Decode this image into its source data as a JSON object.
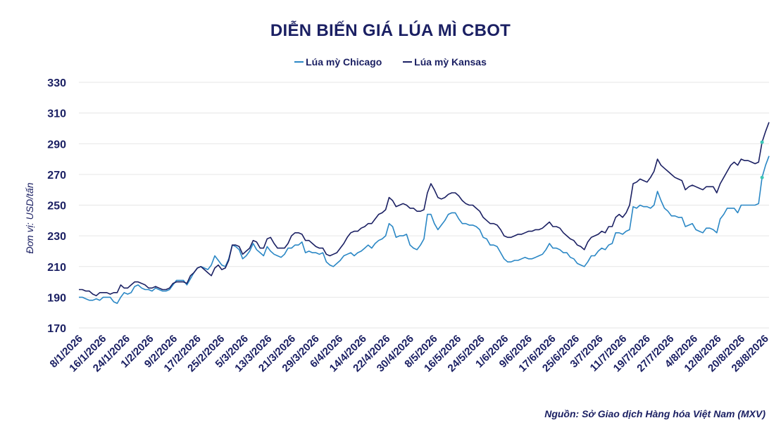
{
  "chart_data": {
    "type": "line",
    "title": "DIỄN BIẾN GIÁ LÚA MÌ CBOT",
    "ylabel": "Đơn vị: USD/tấn",
    "xlabel": "",
    "ylim": [
      170,
      330
    ],
    "yticks": [
      170,
      190,
      210,
      230,
      250,
      270,
      290,
      310,
      330
    ],
    "x_range": [
      "8/1/2026",
      "28/8/2026"
    ],
    "xticks": [
      "8/1/2026",
      "16/1/2026",
      "24/1/2026",
      "1/2/2026",
      "9/2/2026",
      "17/2/2026",
      "25/2/2026",
      "5/3/2026",
      "13/3/2026",
      "21/3/2026",
      "29/3/2026",
      "6/4/2026",
      "14/4/2026",
      "22/4/2026",
      "30/4/2026",
      "8/5/2026",
      "16/5/2026",
      "24/5/2026",
      "1/6/2026",
      "9/6/2026",
      "17/6/2026",
      "25/6/2026",
      "3/7/2026",
      "11/7/2026",
      "19/7/2026",
      "27/7/2026",
      "4/8/2026",
      "12/8/2026",
      "20/8/2026",
      "28/8/2026"
    ],
    "grid": true,
    "legend_position": "top-center",
    "source": "Nguồn: Sở Giao dịch Hàng hóa Việt Nam (MXV)",
    "series": [
      {
        "name": "Lúa mỳ Chicago",
        "color": "#2a87c5",
        "values": [
          190,
          190,
          189,
          188,
          188,
          189,
          188,
          190,
          190,
          190,
          187,
          186,
          190,
          193,
          192,
          193,
          197,
          198,
          196,
          195,
          195,
          194,
          196,
          195,
          194,
          194,
          195,
          198,
          201,
          201,
          201,
          198,
          202,
          206,
          209,
          210,
          209,
          208,
          211,
          217,
          214,
          211,
          210,
          215,
          224,
          223,
          221,
          215,
          217,
          220,
          225,
          221,
          219,
          217,
          223,
          220,
          218,
          217,
          216,
          218,
          222,
          222,
          224,
          224,
          226,
          219,
          220,
          219,
          219,
          218,
          219,
          213,
          211,
          210,
          212,
          214,
          217,
          218,
          219,
          217,
          219,
          220,
          222,
          224,
          222,
          225,
          227,
          228,
          230,
          238,
          236,
          229,
          230,
          230,
          231,
          224,
          222,
          221,
          224,
          228,
          244,
          244,
          238,
          234,
          237,
          240,
          244,
          245,
          245,
          241,
          238,
          238,
          237,
          237,
          236,
          234,
          229,
          228,
          224,
          224,
          223,
          219,
          215,
          213,
          213,
          214,
          214,
          215,
          216,
          215,
          215,
          216,
          217,
          218,
          221,
          225,
          222,
          222,
          221,
          219,
          219,
          216,
          215,
          212,
          211,
          210,
          213,
          217,
          217,
          220,
          222,
          221,
          224,
          225,
          232,
          232,
          231,
          233,
          234,
          249,
          248,
          250,
          249,
          249,
          248,
          250,
          259,
          253,
          248,
          246,
          243,
          243,
          242,
          242,
          236,
          237,
          238,
          234,
          233,
          232,
          235,
          235,
          234,
          232,
          241,
          244,
          248,
          248,
          248,
          245,
          250,
          250,
          250,
          250,
          250,
          251,
          268,
          276,
          282
        ]
      },
      {
        "name": "Lúa mỳ Kansas",
        "color": "#1b2063",
        "values": [
          195,
          195,
          194,
          194,
          192,
          191,
          193,
          193,
          193,
          192,
          193,
          193,
          198,
          196,
          196,
          198,
          200,
          200,
          199,
          198,
          196,
          196,
          197,
          196,
          195,
          195,
          196,
          199,
          200,
          200,
          200,
          199,
          204,
          206,
          209,
          210,
          208,
          206,
          204,
          209,
          211,
          208,
          209,
          214,
          224,
          224,
          223,
          218,
          220,
          222,
          227,
          226,
          222,
          222,
          228,
          229,
          225,
          222,
          222,
          222,
          225,
          230,
          232,
          232,
          231,
          227,
          227,
          225,
          223,
          222,
          222,
          218,
          217,
          218,
          219,
          222,
          225,
          229,
          232,
          233,
          233,
          235,
          236,
          238,
          238,
          241,
          244,
          245,
          247,
          255,
          253,
          249,
          250,
          251,
          250,
          248,
          248,
          246,
          246,
          247,
          258,
          264,
          260,
          255,
          254,
          255,
          257,
          258,
          258,
          256,
          253,
          251,
          250,
          250,
          248,
          246,
          242,
          240,
          238,
          238,
          237,
          234,
          230,
          229,
          229,
          230,
          231,
          231,
          232,
          233,
          233,
          234,
          234,
          235,
          237,
          239,
          236,
          236,
          235,
          232,
          230,
          228,
          227,
          224,
          223,
          221,
          226,
          229,
          230,
          231,
          233,
          232,
          236,
          236,
          242,
          244,
          242,
          245,
          250,
          264,
          265,
          267,
          266,
          265,
          268,
          272,
          280,
          276,
          274,
          272,
          270,
          268,
          267,
          266,
          260,
          262,
          263,
          262,
          261,
          260,
          262,
          262,
          262,
          258,
          264,
          268,
          272,
          276,
          278,
          276,
          280,
          279,
          279,
          278,
          277,
          278,
          291,
          298,
          304
        ]
      }
    ]
  }
}
